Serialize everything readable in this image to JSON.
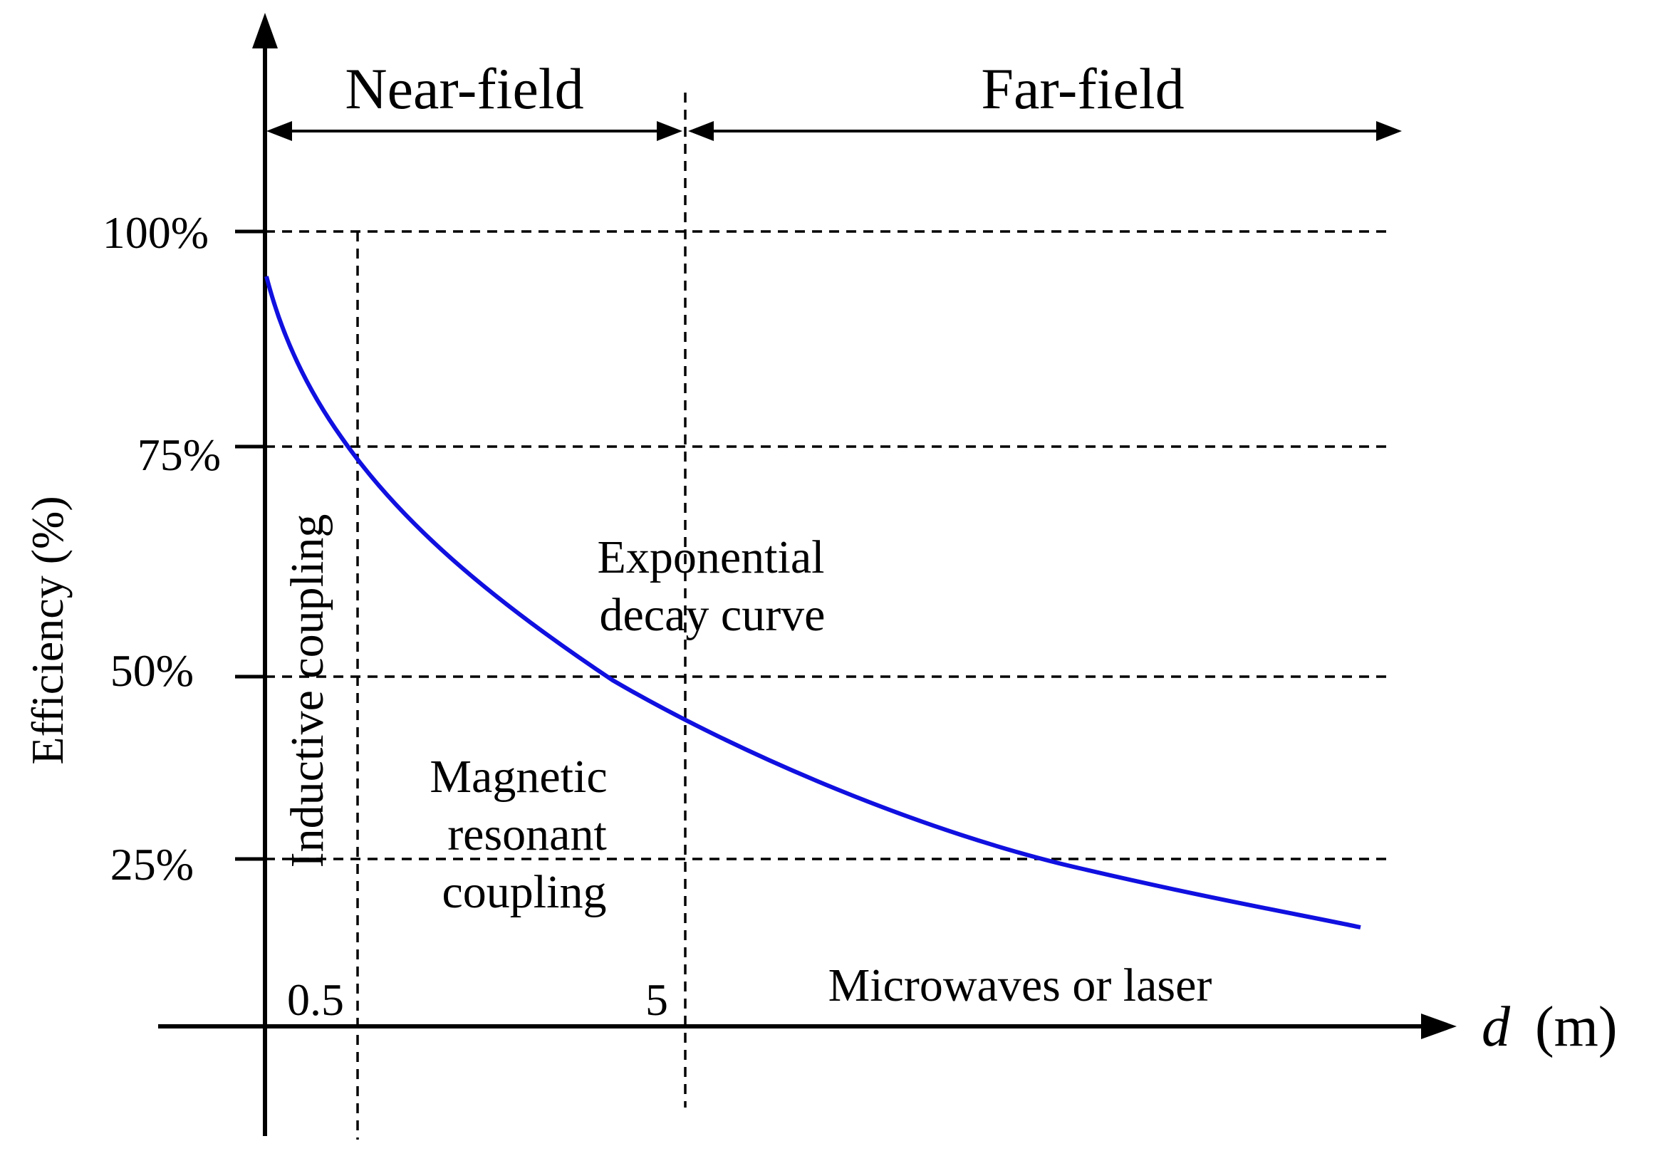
{
  "diagram": {
    "regions": {
      "near_field": "Near-field",
      "far_field": "Far-field"
    },
    "y_axis": {
      "title": "Efficiency (%)",
      "ticks": [
        "100%",
        "75%",
        "50%",
        "25%"
      ]
    },
    "x_axis": {
      "variable": "d",
      "unit": "(m)",
      "ticks": [
        "0.5",
        "5"
      ]
    },
    "annotations": {
      "inductive": "Inductive coupling",
      "magnetic_line1": "Magnetic",
      "magnetic_line2": "resonant",
      "magnetic_line3": "coupling",
      "exponential_line1": "Exponential",
      "exponential_line2": "decay curve",
      "microwave": "Microwaves or laser"
    },
    "colors": {
      "curve": "#1010e0",
      "lines": "#000000"
    }
  }
}
